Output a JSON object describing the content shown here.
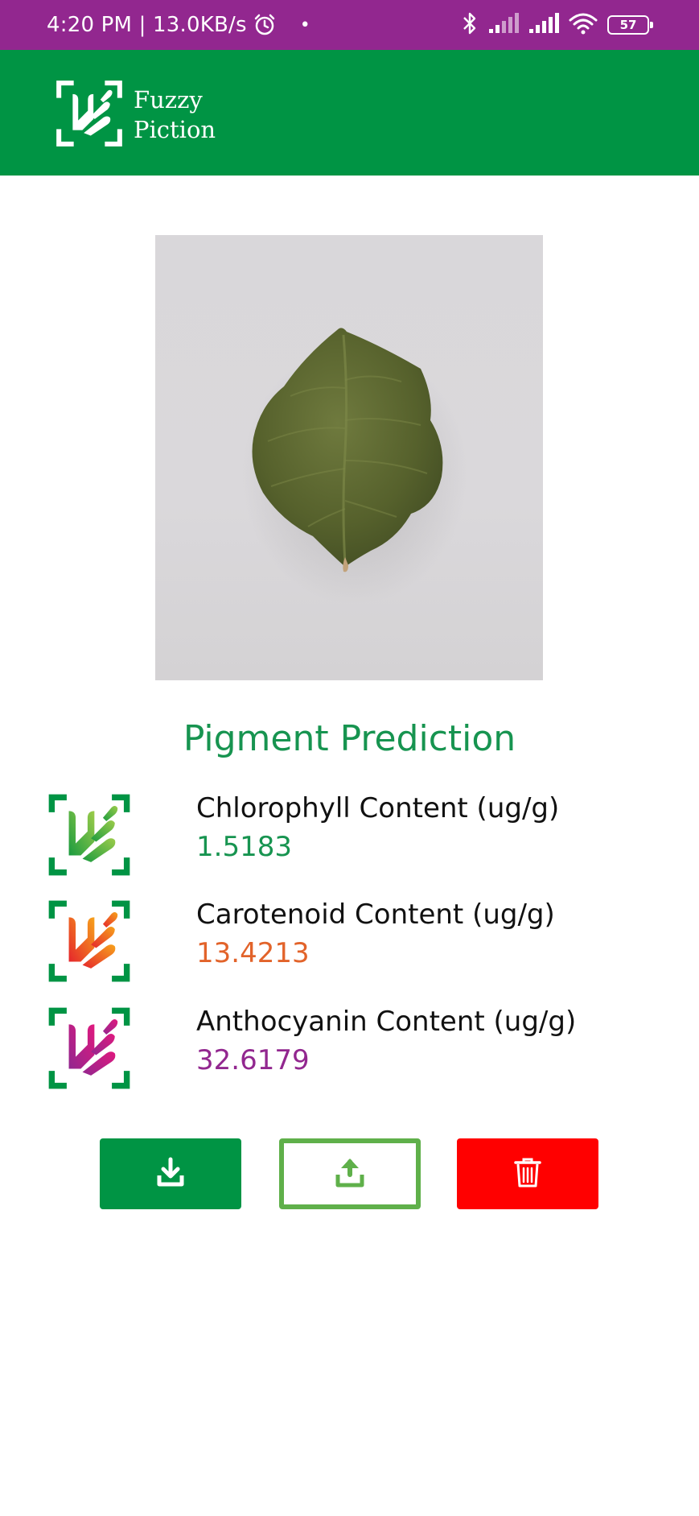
{
  "status_bar": {
    "time_speed": "4:20 PM | 13.0KB/s",
    "dot": "•",
    "battery": "57"
  },
  "app_bar": {
    "name_line1": "Fuzzy",
    "name_line2": "Piction"
  },
  "section": {
    "title": "Pigment Prediction"
  },
  "results": [
    {
      "label": "Chlorophyll Content (ug/g)",
      "value": "1.5183",
      "color": "#179450"
    },
    {
      "label": "Carotenoid Content (ug/g)",
      "value": "13.4213",
      "color": "#e2632a"
    },
    {
      "label": "Anthocyanin Content (ug/g)",
      "value": "32.6179",
      "color": "#92278f"
    }
  ],
  "buttons": {
    "download_icon": "download-icon",
    "upload_icon": "upload-icon",
    "delete_icon": "trash-icon"
  },
  "colors": {
    "status_bar": "#92278f",
    "app_bar": "#009444",
    "delete": "#ff0000",
    "upload_border": "#5fb04a"
  }
}
